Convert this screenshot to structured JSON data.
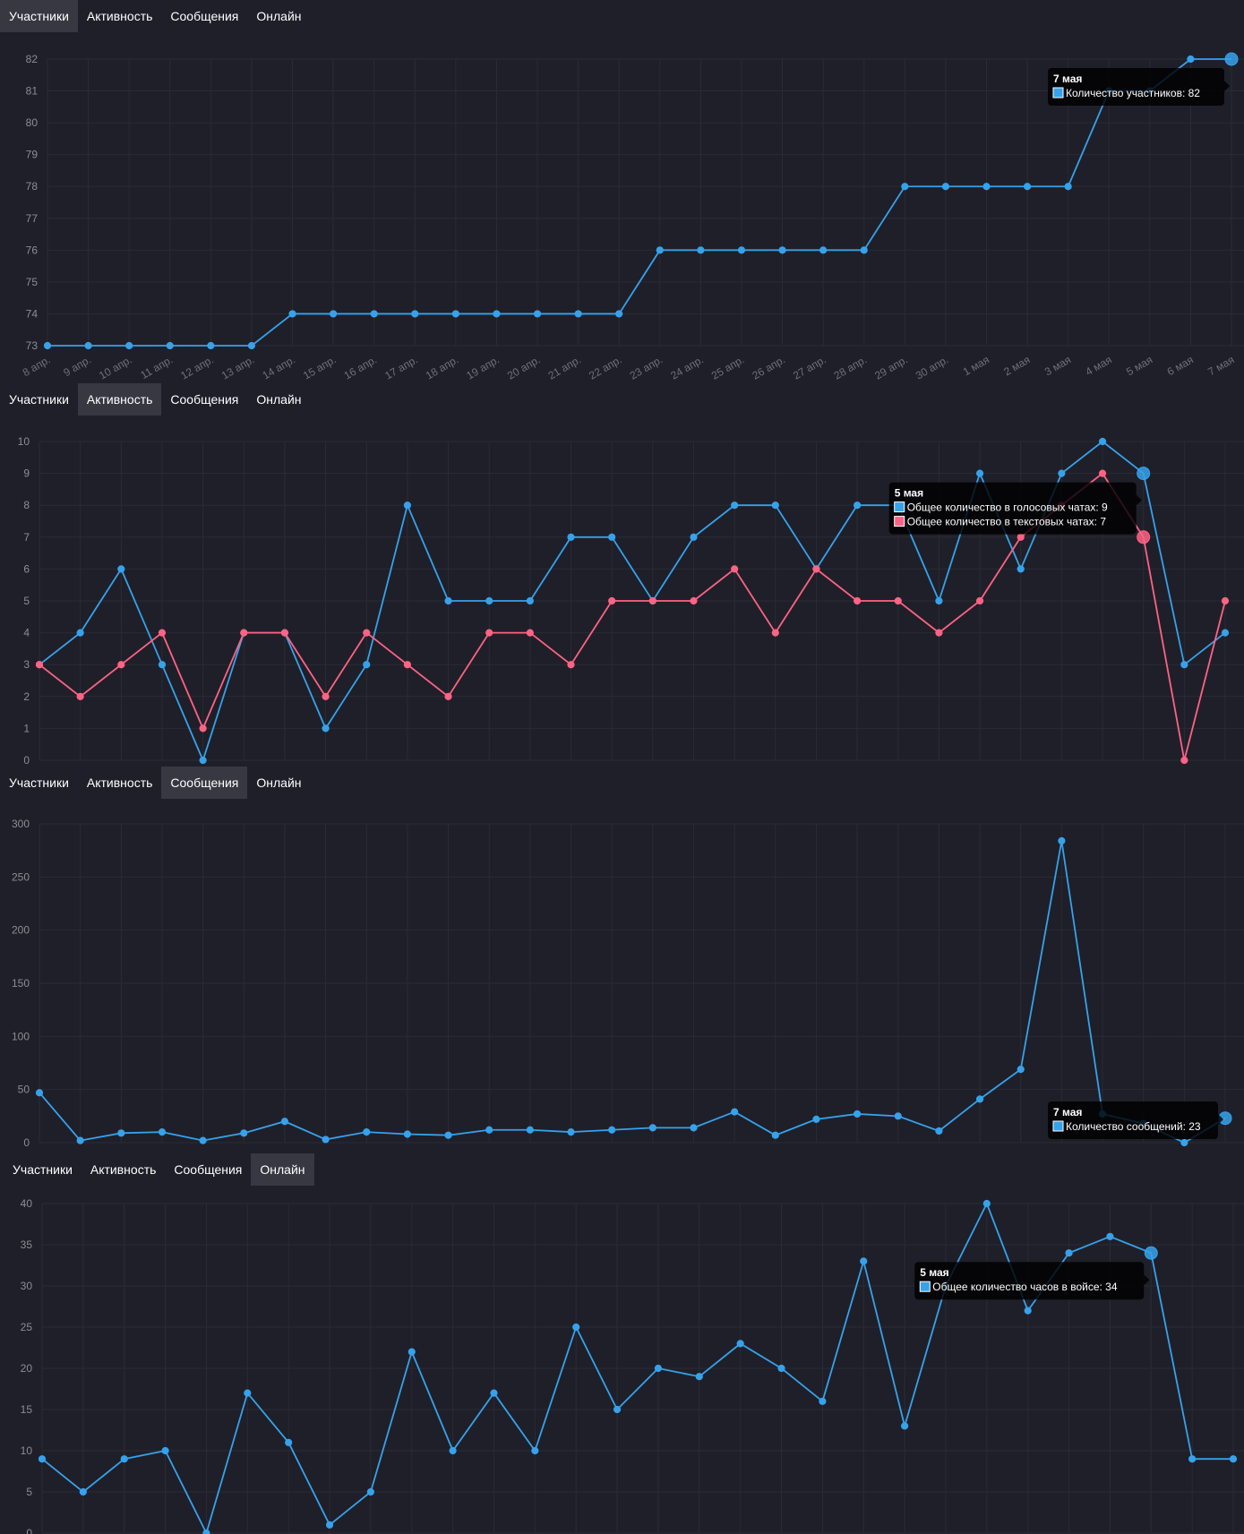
{
  "colors": {
    "background": "#1f1f29",
    "grid": "#2a2b35",
    "blue": "#36a2eb",
    "red": "#ff6384",
    "tab_active": "#373841"
  },
  "dates": [
    "8 апр.",
    "9 апр.",
    "10 апр.",
    "11 апр.",
    "12 апр.",
    "13 апр.",
    "14 апр.",
    "15 апр.",
    "16 апр.",
    "17 апр.",
    "18 апр.",
    "19 апр.",
    "20 апр.",
    "21 апр.",
    "22 апр.",
    "23 апр.",
    "24 апр.",
    "25 апр.",
    "26 апр.",
    "27 апр.",
    "28 апр.",
    "29 апр.",
    "30 апр.",
    "1 мая",
    "2 мая",
    "3 мая",
    "4 мая",
    "5 мая",
    "6 мая",
    "7 мая"
  ],
  "panels": [
    {
      "tabs": [
        "Участники",
        "Активность",
        "Сообщения",
        "Онлайн"
      ],
      "active_tab": 0,
      "chart_data": {
        "type": "line",
        "x": "dates",
        "ylim": [
          73,
          82
        ],
        "yticks": [
          73,
          74,
          75,
          76,
          77,
          78,
          79,
          80,
          81,
          82
        ],
        "grid": true,
        "series": [
          {
            "name": "Количество участников",
            "color": "#36a2eb",
            "values": [
              73,
              73,
              73,
              73,
              73,
              73,
              74,
              74,
              74,
              74,
              74,
              74,
              74,
              74,
              74,
              76,
              76,
              76,
              76,
              76,
              76,
              78,
              78,
              78,
              78,
              78,
              81,
              81,
              82,
              82
            ]
          }
        ],
        "tooltip": {
          "title": "7 мая",
          "index": 29,
          "lines": [
            {
              "label": "Количество участников: 82",
              "color": "#36a2eb"
            }
          ]
        }
      }
    },
    {
      "tabs": [
        "Участники",
        "Активность",
        "Сообщения",
        "Онлайн"
      ],
      "active_tab": 1,
      "chart_data": {
        "type": "line",
        "x": "dates",
        "ylim": [
          0,
          10
        ],
        "yticks": [
          0,
          1,
          2,
          3,
          4,
          5,
          6,
          7,
          8,
          9,
          10
        ],
        "grid": true,
        "series": [
          {
            "name": "Общее количество в голосовых чатах",
            "color": "#36a2eb",
            "values": [
              3,
              4,
              6,
              3,
              0,
              4,
              4,
              1,
              3,
              8,
              5,
              5,
              5,
              7,
              7,
              5,
              7,
              8,
              8,
              6,
              8,
              8,
              5,
              9,
              6,
              9,
              10,
              9,
              3,
              4
            ]
          },
          {
            "name": "Общее количество в текстовых чатах",
            "color": "#ff6384",
            "values": [
              3,
              2,
              3,
              4,
              1,
              4,
              4,
              2,
              4,
              3,
              2,
              4,
              4,
              3,
              5,
              5,
              5,
              6,
              4,
              6,
              5,
              5,
              4,
              5,
              7,
              8,
              9,
              7,
              0,
              5
            ]
          }
        ],
        "tooltip": {
          "title": "5 мая",
          "index": 27,
          "lines": [
            {
              "label": "Общее количество в голосовых чатах: 9",
              "color": "#36a2eb"
            },
            {
              "label": "Общее количество в текстовых чатах: 7",
              "color": "#ff6384"
            }
          ]
        }
      }
    },
    {
      "tabs": [
        "Участники",
        "Активность",
        "Сообщения",
        "Онлайн"
      ],
      "active_tab": 2,
      "chart_data": {
        "type": "line",
        "x": "dates",
        "ylim": [
          0,
          300
        ],
        "yticks": [
          0,
          50,
          100,
          150,
          200,
          250,
          300
        ],
        "grid": true,
        "series": [
          {
            "name": "Количество сообщений",
            "color": "#36a2eb",
            "values": [
              47,
              2,
              9,
              10,
              2,
              9,
              20,
              3,
              10,
              8,
              7,
              12,
              12,
              10,
              12,
              14,
              14,
              29,
              7,
              22,
              27,
              25,
              11,
              41,
              69,
              284,
              27,
              18,
              0,
              23
            ]
          }
        ],
        "tooltip": {
          "title": "7 мая",
          "index": 29,
          "lines": [
            {
              "label": "Количество сообщений: 23",
              "color": "#36a2eb"
            }
          ]
        }
      }
    },
    {
      "tabs": [
        "Участники",
        "Активность",
        "Сообщения",
        "Онлайн"
      ],
      "active_tab": 3,
      "chart_data": {
        "type": "line",
        "x": "dates",
        "ylim": [
          0,
          40
        ],
        "yticks": [
          0,
          5,
          10,
          15,
          20,
          25,
          30,
          35,
          40
        ],
        "grid": true,
        "series": [
          {
            "name": "Общее количество часов в войсе",
            "color": "#36a2eb",
            "values": [
              9,
              5,
              9,
              10,
              0,
              17,
              11,
              1,
              5,
              22,
              10,
              17,
              10,
              25,
              15,
              20,
              19,
              23,
              20,
              16,
              33,
              13,
              30,
              40,
              27,
              34,
              36,
              34,
              9,
              9
            ]
          }
        ],
        "tooltip": {
          "title": "5 мая",
          "index": 27,
          "lines": [
            {
              "label": "Общее количество часов в войсе: 34",
              "color": "#36a2eb"
            }
          ]
        }
      }
    }
  ]
}
